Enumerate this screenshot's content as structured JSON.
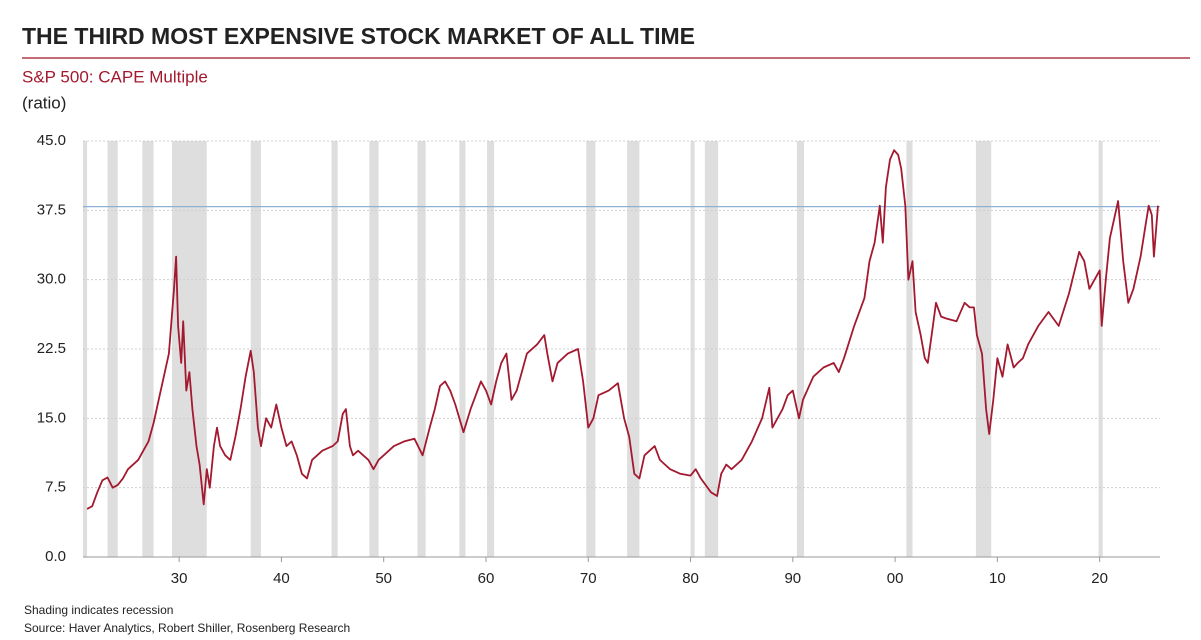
{
  "chart_data": {
    "type": "line",
    "title": "THE THIRD MOST EXPENSIVE STOCK MARKET OF ALL TIME",
    "subtitle": "S&P 500: CAPE Multiple",
    "y_label": "(ratio)",
    "notes": [
      "Shading indicates recession",
      "Source: Haver Analytics, Robert Shiller, Rosenberg Research"
    ],
    "color": "#a3192f",
    "reference_line": 37.9,
    "reference_color": "#8fb0d6",
    "xlim": [
      1920.6,
      2025.9
    ],
    "ylim": [
      0,
      45
    ],
    "xticks": [
      {
        "value": 1930,
        "label": "30"
      },
      {
        "value": 1940,
        "label": "40"
      },
      {
        "value": 1950,
        "label": "50"
      },
      {
        "value": 1960,
        "label": "60"
      },
      {
        "value": 1970,
        "label": "70"
      },
      {
        "value": 1980,
        "label": "80"
      },
      {
        "value": 1990,
        "label": "90"
      },
      {
        "value": 2000,
        "label": "00"
      },
      {
        "value": 2010,
        "label": "10"
      },
      {
        "value": 2020,
        "label": "20"
      }
    ],
    "yticks": [
      {
        "value": 0,
        "label": "0.0"
      },
      {
        "value": 7.5,
        "label": "7.5"
      },
      {
        "value": 15,
        "label": "15.0"
      },
      {
        "value": 22.5,
        "label": "22.5"
      },
      {
        "value": 30,
        "label": "30.0"
      },
      {
        "value": 37.5,
        "label": "37.5"
      },
      {
        "value": 45,
        "label": "45.0"
      }
    ],
    "grid": true,
    "recessions": [
      [
        1920.4,
        1921.0
      ],
      [
        1923.0,
        1924.0
      ],
      [
        1926.4,
        1927.5
      ],
      [
        1929.3,
        1932.7
      ],
      [
        1937.0,
        1938.0
      ],
      [
        1944.9,
        1945.5
      ],
      [
        1948.6,
        1949.5
      ],
      [
        1953.3,
        1954.1
      ],
      [
        1957.4,
        1958.0
      ],
      [
        1960.1,
        1960.8
      ],
      [
        1969.8,
        1970.7
      ],
      [
        1973.8,
        1975.0
      ],
      [
        1980.0,
        1980.4
      ],
      [
        1981.4,
        1982.7
      ],
      [
        1990.4,
        1991.1
      ],
      [
        2001.1,
        2001.7
      ],
      [
        2007.9,
        2009.4
      ],
      [
        2019.9,
        2020.3
      ]
    ],
    "x": [
      1921.0,
      1921.5,
      1922,
      1922.5,
      1923,
      1923.5,
      1924,
      1924.5,
      1925,
      1926,
      1926.5,
      1927,
      1927.5,
      1928,
      1928.5,
      1929,
      1929.5,
      1929.7,
      1929.9,
      1930.2,
      1930.4,
      1930.7,
      1931,
      1931.3,
      1931.7,
      1932,
      1932.4,
      1932.7,
      1933,
      1933.4,
      1933.7,
      1934,
      1934.5,
      1935,
      1935.5,
      1936,
      1936.5,
      1937,
      1937.3,
      1937.7,
      1938,
      1938.5,
      1939,
      1939.5,
      1940,
      1940.5,
      1941,
      1941.5,
      1942,
      1942.5,
      1943,
      1943.5,
      1944,
      1945,
      1945.5,
      1946,
      1946.3,
      1946.7,
      1947,
      1947.5,
      1948,
      1948.5,
      1949,
      1949.5,
      1950,
      1951,
      1952,
      1953,
      1953.8,
      1954.5,
      1955,
      1955.5,
      1956,
      1956.5,
      1957,
      1957.8,
      1958.5,
      1959,
      1959.5,
      1960,
      1960.5,
      1961,
      1961.5,
      1962,
      1962.5,
      1963,
      1963.5,
      1964,
      1965,
      1965.7,
      1966,
      1966.5,
      1967,
      1968,
      1969,
      1969.5,
      1970,
      1970.5,
      1971,
      1972,
      1972.9,
      1973.5,
      1974,
      1974.5,
      1975,
      1975.5,
      1976,
      1976.5,
      1977,
      1977.5,
      1978,
      1979,
      1980,
      1980.5,
      1981,
      1982,
      1982.6,
      1983,
      1983.5,
      1984,
      1985,
      1986,
      1987,
      1987.7,
      1988,
      1989,
      1989.5,
      1990,
      1990.6,
      1991,
      1992,
      1993,
      1994,
      1994.5,
      1995,
      1996,
      1997,
      1997.5,
      1998,
      1998.5,
      1998.8,
      1999.1,
      1999.5,
      1999.9,
      2000.3,
      2000.6,
      2001,
      2001.3,
      2001.7,
      2002,
      2002.5,
      2002.9,
      2003.2,
      2003.7,
      2004,
      2004.5,
      2005,
      2006,
      2006.8,
      2007.3,
      2007.7,
      2008,
      2008.5,
      2008.9,
      2009.2,
      2009.6,
      2010,
      2010.5,
      2011,
      2011.6,
      2012,
      2012.5,
      2013,
      2014,
      2015,
      2016,
      2017,
      2018,
      2018.5,
      2019,
      2019.5,
      2020,
      2020.2,
      2020.6,
      2021,
      2021.8,
      2022.3,
      2022.8,
      2023.3,
      2024,
      2024.5,
      2024.8,
      2025.1,
      2025.3,
      2025.7
    ],
    "values": [
      5.2,
      5.5,
      7,
      8.3,
      8.6,
      7.5,
      7.8,
      8.5,
      9.5,
      10.5,
      11.5,
      12.5,
      14.5,
      17,
      19.5,
      22,
      29,
      32.5,
      25,
      21,
      25.5,
      18,
      20,
      16,
      12,
      10,
      5.7,
      9.5,
      7.5,
      12,
      14,
      12,
      11,
      10.5,
      13,
      16,
      19.5,
      22.3,
      20,
      14,
      12,
      15,
      14,
      16.5,
      14,
      12,
      12.5,
      11,
      9,
      8.5,
      10.5,
      11,
      11.5,
      12,
      12.5,
      15.5,
      16,
      12,
      11,
      11.5,
      11,
      10.5,
      9.5,
      10.5,
      11,
      12,
      12.5,
      12.8,
      11,
      14,
      16,
      18.5,
      19,
      18,
      16.5,
      13.5,
      16,
      17.5,
      19,
      18,
      16.5,
      19,
      21,
      22,
      17,
      18,
      20,
      22,
      23,
      24,
      22,
      19,
      21,
      22,
      22.5,
      19,
      14,
      15,
      17.5,
      18,
      18.8,
      15,
      13,
      9,
      8.5,
      11,
      11.5,
      12,
      10.5,
      10,
      9.5,
      9,
      8.8,
      9.5,
      8.5,
      7,
      6.6,
      9,
      10,
      9.5,
      10.5,
      12.5,
      15,
      18.3,
      14,
      16,
      17.5,
      18,
      15,
      17,
      19.5,
      20.5,
      21,
      20,
      21.5,
      25,
      28,
      32,
      34,
      38,
      34,
      40,
      43,
      44,
      43.5,
      42,
      38,
      30,
      32,
      26.5,
      24,
      21.5,
      21,
      25,
      27.5,
      26,
      25.8,
      25.5,
      27.5,
      27,
      27,
      24,
      22,
      16,
      13.3,
      17,
      21.5,
      19.5,
      23,
      20.5,
      21,
      21.5,
      23,
      25,
      26.5,
      25,
      28.5,
      33,
      32,
      29,
      30,
      31,
      25,
      30,
      34.5,
      38.5,
      32,
      27.5,
      29,
      32.5,
      36,
      38,
      37,
      32.5,
      38
    ]
  }
}
